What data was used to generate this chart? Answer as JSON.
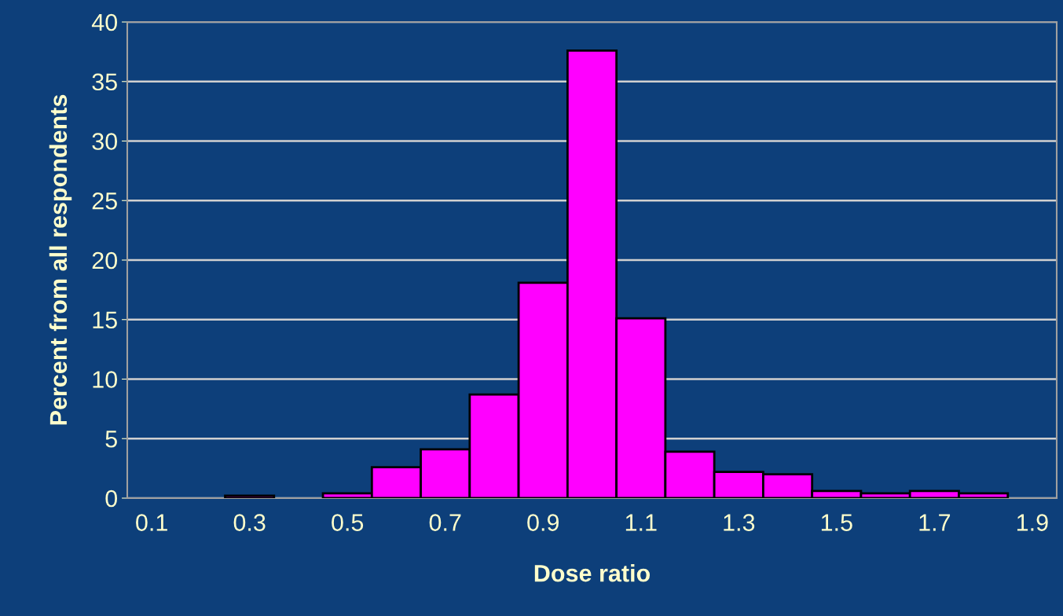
{
  "chart_data": {
    "type": "histogram",
    "xlabel": "Dose ratio",
    "ylabel": "Percent from all respondents",
    "bins": [
      0.05,
      0.15,
      0.25,
      0.35,
      0.45,
      0.55,
      0.65,
      0.75,
      0.85,
      0.95,
      1.05,
      1.15,
      1.25,
      1.35,
      1.45,
      1.55,
      1.65,
      1.75,
      1.85,
      1.95
    ],
    "values": [
      0,
      0,
      0.2,
      0,
      0.4,
      2.6,
      4.1,
      8.7,
      18.1,
      37.6,
      15.1,
      3.9,
      2.2,
      2.0,
      0.6,
      0.4,
      0.6,
      0.4,
      0
    ],
    "color": "#ff00ff",
    "xlim": [
      0.05,
      1.95
    ],
    "xticks": [
      0.1,
      0.3,
      0.5,
      0.7,
      0.9,
      1.1,
      1.3,
      1.5,
      1.7,
      1.9
    ],
    "ylim": [
      0,
      40
    ],
    "yticks": [
      0,
      5,
      10,
      15,
      20,
      25,
      30,
      35,
      40
    ],
    "grid": "y"
  }
}
